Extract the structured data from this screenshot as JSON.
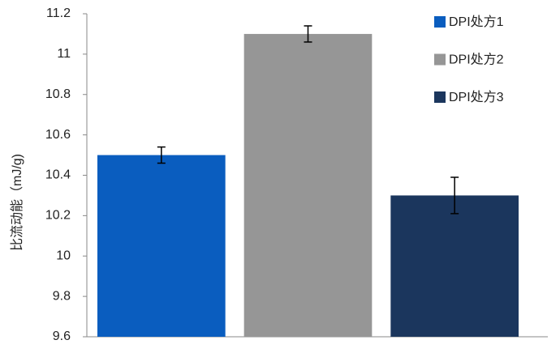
{
  "chart_data": {
    "type": "bar",
    "y_label": "比流动能（mJ/g)",
    "categories": [
      null
    ],
    "series": [
      {
        "name": "DPI处方1",
        "color": "#0a5dbf",
        "values": [
          10.5
        ],
        "errors": [
          0.04
        ]
      },
      {
        "name": "DPI处方2",
        "color": "#969696",
        "values": [
          11.1
        ],
        "errors": [
          0.04
        ]
      },
      {
        "name": "DPI处方3",
        "color": "#1b365d",
        "values": [
          10.3
        ],
        "errors": [
          0.09
        ]
      }
    ],
    "ylim": [
      9.6,
      11.2
    ],
    "yticks": [
      9.6,
      9.8,
      10,
      10.2,
      10.4,
      10.6,
      10.8,
      11,
      11.2
    ],
    "grid": false,
    "legend": "right"
  }
}
